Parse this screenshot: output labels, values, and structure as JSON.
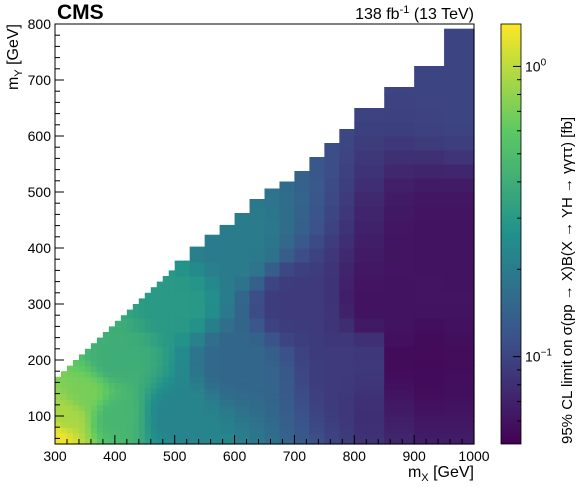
{
  "header": {
    "experiment": "CMS",
    "lumi_value": "138",
    "lumi_unit": "fb",
    "lumi_exponent": "-1",
    "energy": "(13 TeV)"
  },
  "chart_data": {
    "type": "heatmap",
    "xlabel_var": "m",
    "xlabel_sub": "X",
    "xlabel_unit": "[GeV]",
    "ylabel_var": "m",
    "ylabel_sub": "Y",
    "ylabel_unit": "[GeV]",
    "zlabel": "95% CL limit on σ(pp → X)B(X → YH → γγττ) [fb]",
    "xlim": [
      300,
      1000
    ],
    "ylim": [
      50,
      800
    ],
    "zlim": [
      0.05,
      1.4
    ],
    "zscale": "log",
    "colormap": "viridis",
    "x_ticks": [
      300,
      400,
      500,
      600,
      700,
      800,
      900,
      1000
    ],
    "y_ticks": [
      100,
      200,
      300,
      400,
      500,
      600,
      700,
      800
    ],
    "z_ticks": [
      {
        "value": 0.1,
        "label": "10",
        "exp": "−1"
      },
      {
        "value": 1.0,
        "label": "10",
        "exp": "0"
      }
    ],
    "kinematic_boundary": [
      {
        "mx": 300,
        "my_max": 165
      },
      {
        "mx": 350,
        "my_max": 215
      },
      {
        "mx": 400,
        "my_max": 265
      },
      {
        "mx": 450,
        "my_max": 315
      },
      {
        "mx": 500,
        "my_max": 365
      },
      {
        "mx": 550,
        "my_max": 415
      },
      {
        "mx": 600,
        "my_max": 450
      },
      {
        "mx": 650,
        "my_max": 500
      },
      {
        "mx": 700,
        "my_max": 525
      },
      {
        "mx": 750,
        "my_max": 575
      },
      {
        "mx": 800,
        "my_max": 625
      },
      {
        "mx": 850,
        "my_max": 675
      },
      {
        "mx": 900,
        "my_max": 700
      },
      {
        "mx": 950,
        "my_max": 750
      },
      {
        "mx": 980,
        "my_max": 800
      }
    ],
    "limit_samples": [
      {
        "mx": 300,
        "my": 60,
        "limit": 1.3
      },
      {
        "mx": 320,
        "my": 100,
        "limit": 0.9
      },
      {
        "mx": 350,
        "my": 140,
        "limit": 0.7
      },
      {
        "mx": 400,
        "my": 100,
        "limit": 0.45
      },
      {
        "mx": 400,
        "my": 200,
        "limit": 0.4
      },
      {
        "mx": 500,
        "my": 100,
        "limit": 0.22
      },
      {
        "mx": 500,
        "my": 300,
        "limit": 0.3
      },
      {
        "mx": 600,
        "my": 200,
        "limit": 0.15
      },
      {
        "mx": 600,
        "my": 400,
        "limit": 0.2
      },
      {
        "mx": 700,
        "my": 300,
        "limit": 0.09
      },
      {
        "mx": 800,
        "my": 200,
        "limit": 0.09
      },
      {
        "mx": 850,
        "my": 300,
        "limit": 0.06
      },
      {
        "mx": 900,
        "my": 200,
        "limit": 0.055
      },
      {
        "mx": 950,
        "my": 400,
        "limit": 0.06
      },
      {
        "mx": 1000,
        "my": 700,
        "limit": 0.1
      }
    ]
  }
}
